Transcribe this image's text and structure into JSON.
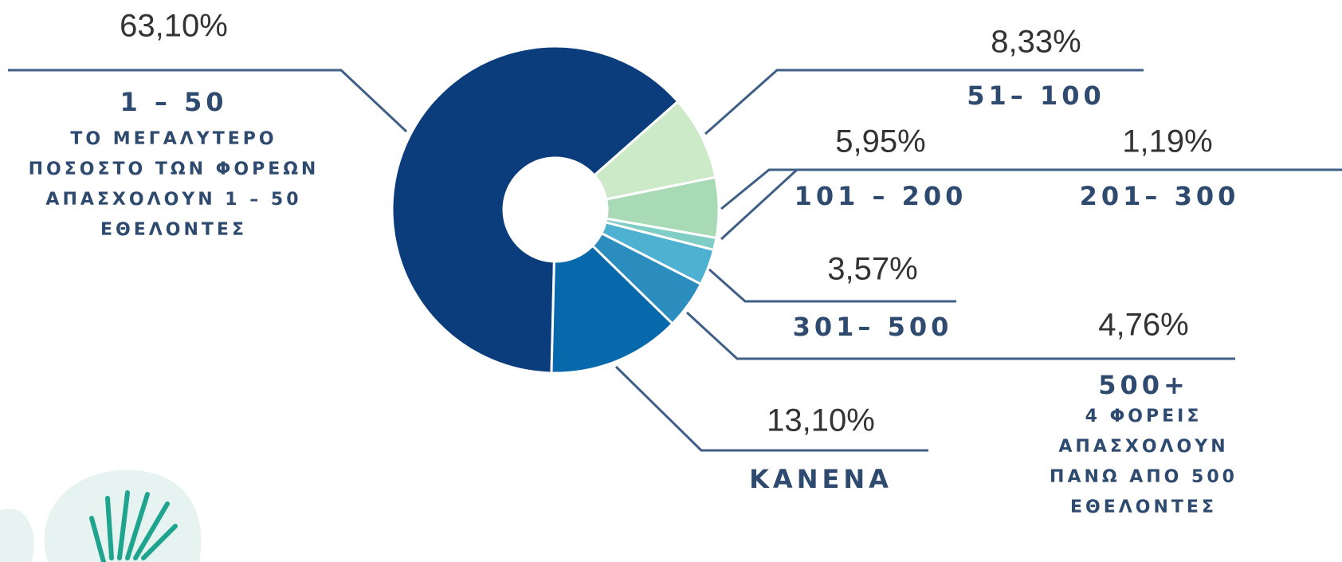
{
  "chart_data": {
    "type": "pie",
    "categories": [
      "1 – 50",
      "51– 100",
      "101 – 200",
      "201– 300",
      "301– 500",
      "500+",
      "ΚΑΝΕΝΑ"
    ],
    "values": [
      63.1,
      8.33,
      5.95,
      1.19,
      3.57,
      4.76,
      13.1
    ],
    "value_labels": [
      "63,10%",
      "8,33%",
      "5,95%",
      "1,19%",
      "3,57%",
      "4,76%",
      "13,10%"
    ],
    "colors": [
      "#0b3d7c",
      "#cdeac8",
      "#a8dab5",
      "#7fcdc4",
      "#4eb1d2",
      "#2b8cbe",
      "#0868ac"
    ],
    "annotations": [
      [
        "ΤΟ ΜΕΓΑΛΥΤΕΡΟ",
        "ΠΟΣΟΣΤΟ ΤΩΝ ΦΟΡΕΩΝ",
        "ΑΠΑΣΧΟΛΟΥΝ 1 – 50",
        "ΕΘΕΛΟΝΤΕΣ"
      ],
      [
        "4 ΦΟΡΕΙΣ",
        "ΑΠΑΣΧΟΛΟΥΝ",
        "ΠΑΝΩ ΑΠΟ 500",
        "ΕΘΕΛΟΝΤΕΣ"
      ]
    ]
  }
}
